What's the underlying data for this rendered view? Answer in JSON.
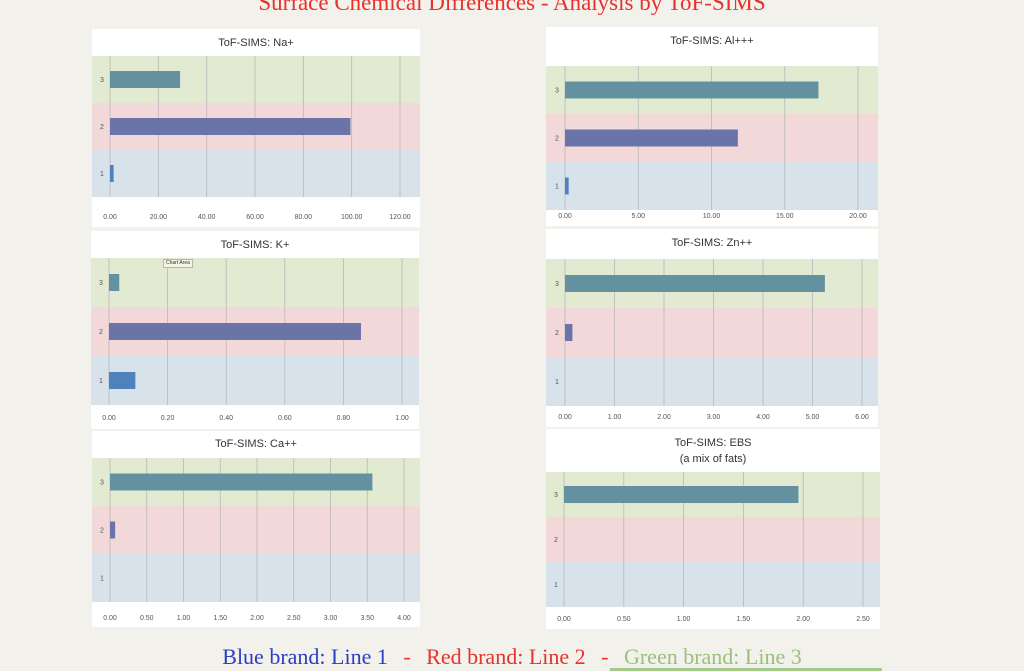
{
  "page": {
    "title": "Surface Chemical Differences - Analysis by ToF-SIMS"
  },
  "colors": {
    "title": "#e8312b",
    "band_line1": "#d8e2ea",
    "band_line2": "#f2d8d8",
    "band_line3": "#e2ead2",
    "bar_line1": "#4f81bd",
    "bar_line2": "#6b74a8",
    "bar_line3": "#6391a0",
    "legend_blue": "#2c3ec4",
    "legend_red": "#e8312b",
    "legend_green": "#9bc07a",
    "legend_sep": "#e8312b"
  },
  "legend": {
    "blue_text": "Blue brand: Line 1",
    "sep1": "-",
    "red_text": "Red brand: Line 2",
    "sep2": "-",
    "green_text": "Green brand: Line 3"
  },
  "tooltip": {
    "text": "Chart Area"
  },
  "chart_data": [
    {
      "type": "bar",
      "title": "ToF-SIMS: Na+",
      "subtitle": "",
      "categories": [
        "1",
        "2",
        "3"
      ],
      "values": [
        1.5,
        99.5,
        29
      ],
      "xlim": [
        0,
        120
      ],
      "ticks": [
        "0.00",
        "20.00",
        "40.00",
        "60.00",
        "80.00",
        "100.00",
        "120.00"
      ],
      "grid": true
    },
    {
      "type": "bar",
      "title": "ToF-SIMS: Al+++",
      "subtitle": "",
      "categories": [
        "1",
        "2",
        "3"
      ],
      "values": [
        0.25,
        11.8,
        17.3
      ],
      "xlim": [
        0,
        20
      ],
      "ticks": [
        "0.00",
        "5.00",
        "10.00",
        "15.00",
        "20.00"
      ],
      "grid": true
    },
    {
      "type": "bar",
      "title": "ToF-SIMS: K+",
      "subtitle": "",
      "categories": [
        "1",
        "2",
        "3"
      ],
      "values": [
        0.09,
        0.86,
        0.035
      ],
      "xlim": [
        0,
        1
      ],
      "ticks": [
        "0.00",
        "0.20",
        "0.40",
        "0.60",
        "0.80",
        "1.00"
      ],
      "grid": true
    },
    {
      "type": "bar",
      "title": "ToF-SIMS: Zn++",
      "subtitle": "",
      "categories": [
        "1",
        "2",
        "3"
      ],
      "values": [
        0,
        0.15,
        5.25
      ],
      "xlim": [
        0,
        6
      ],
      "ticks": [
        "0.00",
        "1.00",
        "2.00",
        "3.00",
        "4.00",
        "5.00",
        "6.00"
      ],
      "grid": true
    },
    {
      "type": "bar",
      "title": "ToF-SIMS: Ca++",
      "subtitle": "",
      "categories": [
        "1",
        "2",
        "3"
      ],
      "values": [
        0,
        0.07,
        3.57
      ],
      "xlim": [
        0,
        4
      ],
      "ticks": [
        "0.00",
        "0.50",
        "1.00",
        "1.50",
        "2.00",
        "2.50",
        "3.00",
        "3.50",
        "4.00"
      ],
      "grid": true
    },
    {
      "type": "bar",
      "title": "ToF-SIMS: EBS",
      "subtitle": "(a mix of fats)",
      "categories": [
        "1",
        "2",
        "3"
      ],
      "values": [
        0,
        0,
        1.96
      ],
      "xlim": [
        0,
        2.5
      ],
      "ticks": [
        "0.00",
        "0.50",
        "1.00",
        "1.50",
        "2.00",
        "2.50"
      ],
      "grid": true
    }
  ]
}
